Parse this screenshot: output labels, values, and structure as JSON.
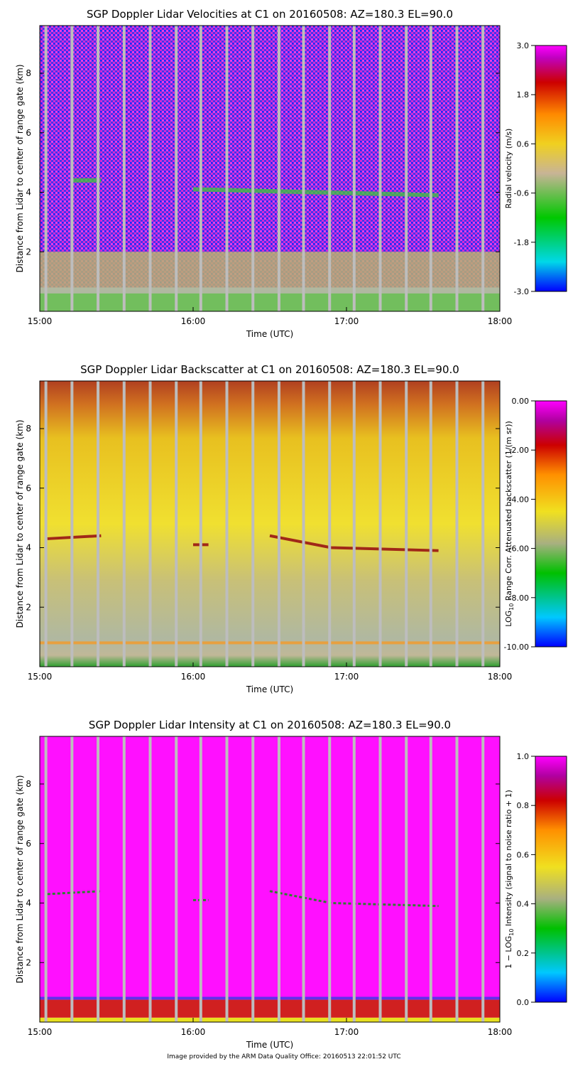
{
  "chart_data": [
    {
      "type": "heatmap",
      "title": "SGP Doppler Lidar Velocities at C1 on 20160508: AZ=180.3 EL=90.0",
      "xlabel": "Time (UTC)",
      "ylabel": "Distance from Lidar to center of range gate (km)",
      "xticks": [
        "15:00",
        "16:00",
        "17:00",
        "18:00"
      ],
      "xlim_hours": [
        15,
        18
      ],
      "ylim": [
        0,
        9.6
      ],
      "yticks": [
        2,
        4,
        6,
        8
      ],
      "colorbar": {
        "label": "Radial velocity (m/s)",
        "ticks": [
          "3.0",
          "1.8",
          "0.6",
          "-0.6",
          "-1.8",
          "-3.0"
        ],
        "min": -3.0,
        "max": 3.0
      },
      "features": {
        "background": "noise (magenta/blue speckle) above ~2 km",
        "layer_km": 4.3,
        "boundary_layer_top_km": 2.0
      }
    },
    {
      "type": "heatmap",
      "title": "SGP Doppler Lidar Backscatter at C1 on 20160508: AZ=180.3 EL=90.0",
      "xlabel": "Time (UTC)",
      "ylabel": "Distance from Lidar to center of range gate (km)",
      "xticks": [
        "15:00",
        "16:00",
        "17:00",
        "18:00"
      ],
      "xlim_hours": [
        15,
        18
      ],
      "ylim": [
        0,
        9.6
      ],
      "yticks": [
        2,
        4,
        6,
        8
      ],
      "colorbar": {
        "label": "LOG10 Range Corr. Attenuated backscatter (1/(m sr))",
        "label_parts": [
          "LOG",
          "10",
          " Range Corr. Attenuated backscatter (1/(m sr))"
        ],
        "ticks": [
          "0.00",
          "-2.00",
          "-4.00",
          "-6.00",
          "-8.00",
          "-10.00"
        ],
        "min": -10.0,
        "max": 0.0
      },
      "features": {
        "layer_km": 4.3,
        "boundary_layer_top_km": 0.8
      }
    },
    {
      "type": "heatmap",
      "title": "SGP Doppler Lidar Intensity at C1 on 20160508: AZ=180.3 EL=90.0",
      "xlabel": "Time (UTC)",
      "ylabel": "Distance from Lidar to center of range gate (km)",
      "xticks": [
        "15:00",
        "16:00",
        "17:00",
        "18:00"
      ],
      "xlim_hours": [
        15,
        18
      ],
      "ylim": [
        0,
        9.6
      ],
      "yticks": [
        2,
        4,
        6,
        8
      ],
      "colorbar": {
        "label": "1 - LOG10 Intensity (signal to noise ratio + 1)",
        "label_parts": [
          "1 − LOG",
          "10",
          " Intensity (signal to noise ratio + 1)"
        ],
        "ticks": [
          "1.0",
          "0.8",
          "0.6",
          "0.4",
          "0.2",
          "0.0"
        ],
        "min": 0.0,
        "max": 1.0
      },
      "features": {
        "layer_km": 4.3,
        "boundary_layer_top_km": 0.8
      }
    }
  ],
  "gap_times_hours": [
    15.04,
    15.21,
    15.38,
    15.55,
    15.72,
    15.89,
    16.05,
    16.22,
    16.39,
    16.56,
    16.72,
    16.89,
    17.05,
    17.22,
    17.39,
    17.55,
    17.72,
    17.89
  ],
  "footer": "Image provided by the ARM Data Quality Office: 20160513 22:01:52 UTC"
}
